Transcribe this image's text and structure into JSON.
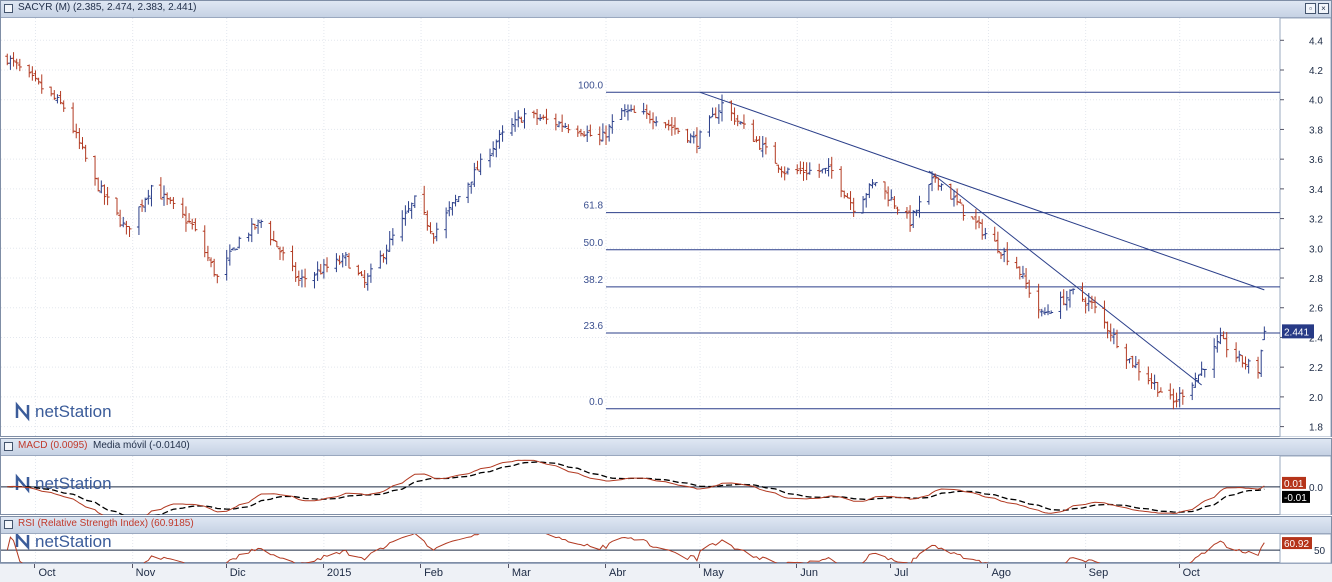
{
  "chart_data": [
    {
      "type": "ohlc",
      "header": {
        "symbol": "SACYR",
        "period": "M",
        "ohlc_text": "2.385, 2.474, 2.383, 2.441"
      },
      "yaxis": {
        "ticks": [
          "4.4",
          "4.2",
          "4.0",
          "3.8",
          "3.6",
          "3.4",
          "3.2",
          "3.0",
          "2.8",
          "2.6",
          "2.4",
          "2.2",
          "2.0",
          "1.8"
        ],
        "range": [
          1.73,
          4.55
        ]
      },
      "last_price_label": "2.441",
      "last_price": 2.441,
      "fibonacci": {
        "levels": [
          {
            "label": "100.0",
            "price": 4.05
          },
          {
            "label": "61.8",
            "price": 3.24
          },
          {
            "label": "50.0",
            "price": 2.99
          },
          {
            "label": "38.2",
            "price": 2.74
          },
          {
            "label": "23.6",
            "price": 2.43
          },
          {
            "label": "0.0",
            "price": 1.92
          }
        ]
      },
      "trendlines": [
        {
          "from": {
            "date": "2015-05-01",
            "price": 4.05
          },
          "to": {
            "date": "2015-10-28",
            "price": 2.72
          }
        },
        {
          "from": {
            "date": "2015-07-13",
            "price": 3.52
          },
          "to": {
            "date": "2015-10-08",
            "price": 2.08
          }
        }
      ],
      "anchors": [
        {
          "date": "2014-09-22",
          "price": 4.28
        },
        {
          "date": "2014-10-10",
          "price": 3.95
        },
        {
          "date": "2014-10-20",
          "price": 3.45
        },
        {
          "date": "2014-10-30",
          "price": 3.12
        },
        {
          "date": "2014-11-07",
          "price": 3.42
        },
        {
          "date": "2014-11-20",
          "price": 3.15
        },
        {
          "date": "2014-11-28",
          "price": 2.8
        },
        {
          "date": "2014-12-05",
          "price": 3.06
        },
        {
          "date": "2014-12-12",
          "price": 3.18
        },
        {
          "date": "2014-12-19",
          "price": 2.95
        },
        {
          "date": "2014-12-24",
          "price": 2.78
        },
        {
          "date": "2015-01-08",
          "price": 2.93
        },
        {
          "date": "2015-01-14",
          "price": 2.76
        },
        {
          "date": "2015-01-30",
          "price": 3.32
        },
        {
          "date": "2015-02-05",
          "price": 3.1
        },
        {
          "date": "2015-02-25",
          "price": 3.72
        },
        {
          "date": "2015-03-06",
          "price": 3.9
        },
        {
          "date": "2015-03-24",
          "price": 3.8
        },
        {
          "date": "2015-03-30",
          "price": 3.72
        },
        {
          "date": "2015-04-06",
          "price": 3.92
        },
        {
          "date": "2015-04-17",
          "price": 3.88
        },
        {
          "date": "2015-04-30",
          "price": 3.72
        },
        {
          "date": "2015-05-08",
          "price": 3.97
        },
        {
          "date": "2015-05-28",
          "price": 3.52
        },
        {
          "date": "2015-06-12",
          "price": 3.52
        },
        {
          "date": "2015-06-19",
          "price": 3.28
        },
        {
          "date": "2015-06-26",
          "price": 3.45
        },
        {
          "date": "2015-07-07",
          "price": 3.18
        },
        {
          "date": "2015-07-15",
          "price": 3.48
        },
        {
          "date": "2015-07-24",
          "price": 3.25
        },
        {
          "date": "2015-08-10",
          "price": 2.88
        },
        {
          "date": "2015-08-18",
          "price": 2.55
        },
        {
          "date": "2015-08-28",
          "price": 2.7
        },
        {
          "date": "2015-09-03",
          "price": 2.62
        },
        {
          "date": "2015-09-15",
          "price": 2.25
        },
        {
          "date": "2015-09-29",
          "price": 1.96
        },
        {
          "date": "2015-10-07",
          "price": 2.15
        },
        {
          "date": "2015-10-14",
          "price": 2.38
        },
        {
          "date": "2015-10-20",
          "price": 2.25
        },
        {
          "date": "2015-10-26",
          "price": 2.18
        },
        {
          "date": "2015-10-28",
          "price": 2.44
        }
      ]
    },
    {
      "type": "line",
      "title": "MACD (0.0095)",
      "series_labels": [
        "MACD (0.0095)",
        "Media móvil (-0.0140)"
      ],
      "yaxis": {
        "ticks": [
          "0.0"
        ]
      },
      "value_labels": [
        "0.01",
        "-0.01"
      ],
      "values": [
        0.0095,
        -0.014
      ]
    },
    {
      "type": "line",
      "title": "RSI (Relative Strength Index) (60.9185)",
      "yaxis": {
        "ticks": [
          "50"
        ]
      },
      "value_label": "60.92",
      "value": 60.9185
    }
  ],
  "xaxis": {
    "labels": [
      {
        "text": "Oct",
        "date": "2014-10-01"
      },
      {
        "text": "Nov",
        "date": "2014-11-01"
      },
      {
        "text": "Dic",
        "date": "2014-12-01"
      },
      {
        "text": "2015",
        "date": "2015-01-01"
      },
      {
        "text": "Feb",
        "date": "2015-02-01"
      },
      {
        "text": "Mar",
        "date": "2015-03-01"
      },
      {
        "text": "Abr",
        "date": "2015-04-01"
      },
      {
        "text": "May",
        "date": "2015-05-01"
      },
      {
        "text": "Jun",
        "date": "2015-06-01"
      },
      {
        "text": "Jul",
        "date": "2015-07-01"
      },
      {
        "text": "Ago",
        "date": "2015-08-01"
      },
      {
        "text": "Sep",
        "date": "2015-09-01"
      },
      {
        "text": "Oct",
        "date": "2015-10-01"
      }
    ]
  },
  "watermark": "netStation",
  "icons": [
    "panel-icon",
    "restore-icon",
    "close-icon"
  ],
  "colors": {
    "up": "#2b3f8a",
    "down": "#b23a22",
    "fib": "#2b3f8a",
    "price_tag": "#273a86",
    "macd_tag": "#b5341a",
    "signal_tag": "#000000",
    "rsi_tag": "#b5341a"
  }
}
